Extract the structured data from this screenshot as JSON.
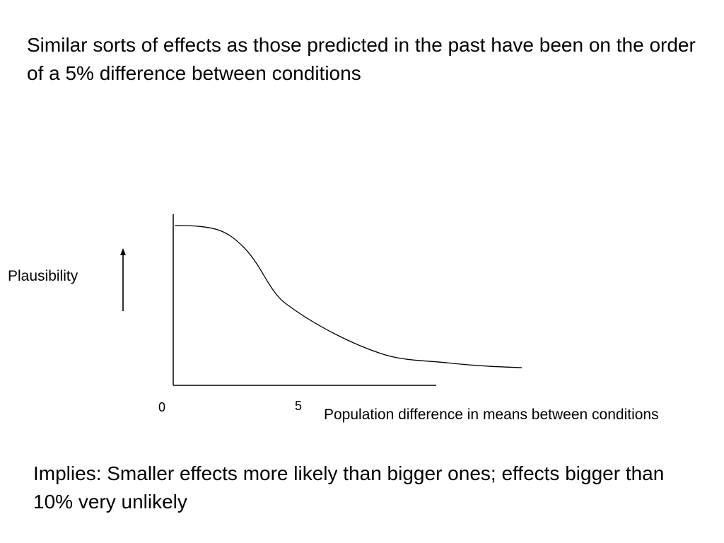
{
  "title": "Similar sorts of effects as those predicted in the past have been on the order of  a 5% difference between conditions",
  "diagram": {
    "y_axis_label": "Plausibility",
    "x_axis_label": "Population difference in means between conditions",
    "ticks": {
      "zero": "0",
      "five": "5"
    },
    "line_color": "#000000"
  },
  "conclusion": "Implies: Smaller effects more likely than bigger ones; effects bigger than 10% very unlikely"
}
